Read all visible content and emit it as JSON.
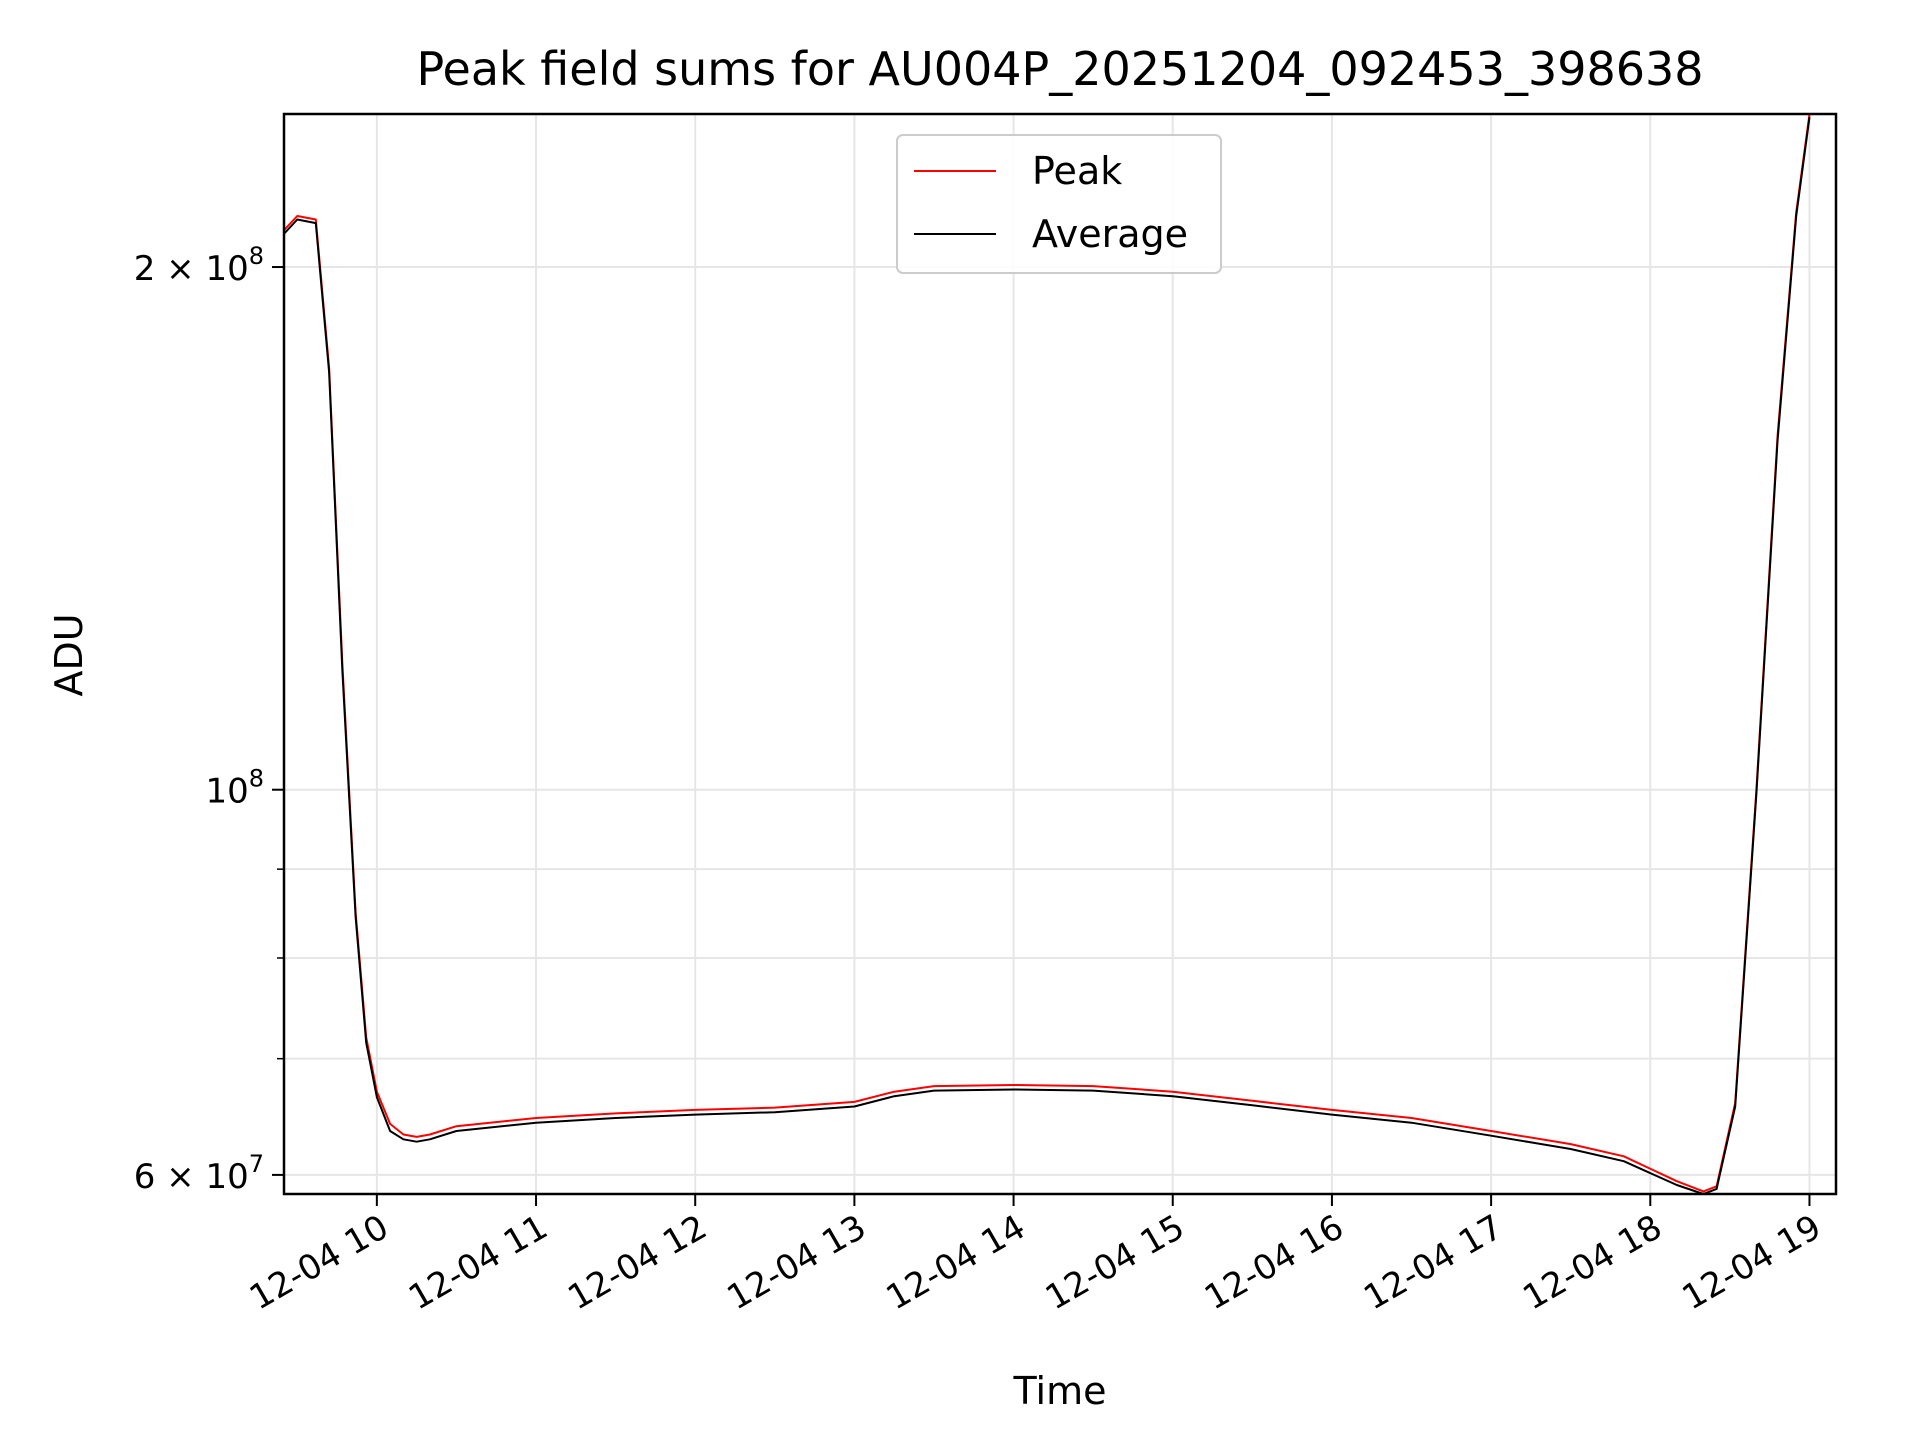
{
  "chart_data": {
    "type": "line",
    "title": "Peak field sums for AU004P_20251204_092453_398638",
    "xlabel": "Time",
    "ylabel": "ADU",
    "y_scale": "log",
    "xlim": [
      "2025-12-04 09:25",
      "2025-12-04 19:10"
    ],
    "ylim": [
      58500000,
      245000000
    ],
    "grid": true,
    "legend": {
      "position": "top-center",
      "entries": [
        "Peak",
        "Average"
      ]
    },
    "x_ticks": [
      "12-04 10",
      "12-04 11",
      "12-04 12",
      "12-04 13",
      "12-04 14",
      "12-04 15",
      "12-04 16",
      "12-04 17",
      "12-04 18",
      "12-04 19"
    ],
    "y_ticks": [
      {
        "value": 60000000,
        "base": "6 × 10",
        "exp": "7"
      },
      {
        "value": 100000000,
        "base": "10",
        "exp": "8"
      },
      {
        "value": 200000000,
        "base": "2 × 10",
        "exp": "8"
      }
    ],
    "x": [
      "2025-12-04 09:25",
      "2025-12-04 09:30",
      "2025-12-04 09:37",
      "2025-12-04 09:42",
      "2025-12-04 09:47",
      "2025-12-04 09:52",
      "2025-12-04 09:56",
      "2025-12-04 10:00",
      "2025-12-04 10:05",
      "2025-12-04 10:10",
      "2025-12-04 10:15",
      "2025-12-04 10:20",
      "2025-12-04 10:30",
      "2025-12-04 11:00",
      "2025-12-04 11:30",
      "2025-12-04 12:00",
      "2025-12-04 12:30",
      "2025-12-04 13:00",
      "2025-12-04 13:15",
      "2025-12-04 13:30",
      "2025-12-04 14:00",
      "2025-12-04 14:30",
      "2025-12-04 15:00",
      "2025-12-04 15:30",
      "2025-12-04 16:00",
      "2025-12-04 16:30",
      "2025-12-04 17:00",
      "2025-12-04 17:30",
      "2025-12-04 17:50",
      "2025-12-04 18:10",
      "2025-12-04 18:20",
      "2025-12-04 18:25",
      "2025-12-04 18:32",
      "2025-12-04 18:40",
      "2025-12-04 18:48",
      "2025-12-04 18:55",
      "2025-12-04 19:00"
    ],
    "series": [
      {
        "name": "Peak",
        "color": "#ff0000",
        "values": [
          210000000,
          214000000,
          213000000,
          175000000,
          118000000,
          85000000,
          72000000,
          67000000,
          64200000,
          63300000,
          63100000,
          63300000,
          64000000,
          64700000,
          65100000,
          65400000,
          65600000,
          66100000,
          67000000,
          67500000,
          67600000,
          67500000,
          67000000,
          66200000,
          65400000,
          64700000,
          63600000,
          62500000,
          61500000,
          59500000,
          58700000,
          59100000,
          66000000,
          100000000,
          160000000,
          215000000,
          245000000
        ]
      },
      {
        "name": "Average",
        "color": "#000000",
        "values": [
          209000000,
          213000000,
          212000000,
          174000000,
          117000000,
          84500000,
          71500000,
          66500000,
          63600000,
          62900000,
          62700000,
          62900000,
          63600000,
          64300000,
          64700000,
          65000000,
          65200000,
          65700000,
          66600000,
          67100000,
          67200000,
          67100000,
          66600000,
          65800000,
          65000000,
          64300000,
          63200000,
          62100000,
          61100000,
          59200000,
          58500000,
          58900000,
          65700000,
          99500000,
          159000000,
          214000000,
          244000000
        ]
      }
    ]
  }
}
